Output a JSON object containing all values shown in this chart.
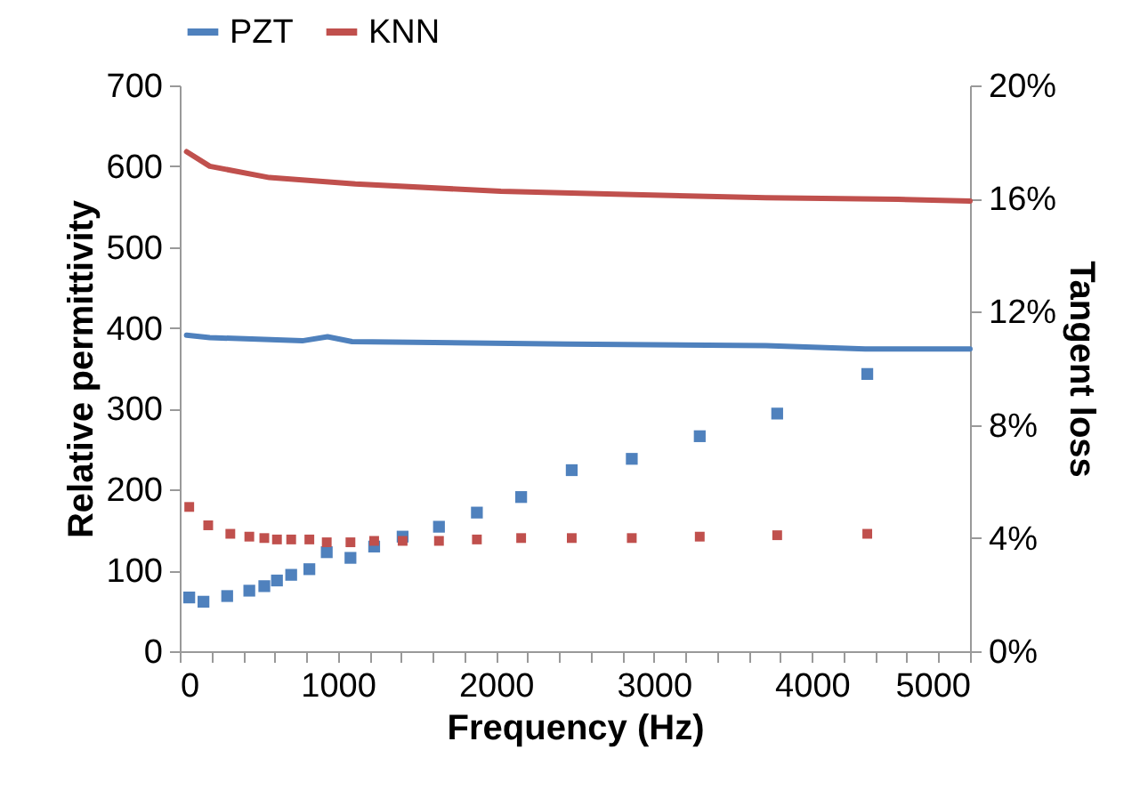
{
  "chart_data": {
    "type": "line",
    "xlabel": "Frequency (Hz)",
    "ylabel": "Relative permittivity",
    "y2label": "Tangent loss",
    "xlim": [
      0,
      5000
    ],
    "xticks": [
      0,
      {
        "value": 200,
        "label": null
      },
      {
        "value": 400,
        "label": null
      },
      {
        "value": 600,
        "label": null
      },
      {
        "value": 800,
        "label": null
      },
      1000,
      {
        "value": 1200,
        "label": null
      },
      {
        "value": 1400,
        "label": null
      },
      {
        "value": 1600,
        "label": null
      },
      {
        "value": 1800,
        "label": null
      },
      2000,
      {
        "value": 2200,
        "label": null
      },
      {
        "value": 2400,
        "label": null
      },
      {
        "value": 2600,
        "label": null
      },
      {
        "value": 2800,
        "label": null
      },
      3000,
      {
        "value": 3200,
        "label": null
      },
      {
        "value": 3400,
        "label": null
      },
      {
        "value": 3600,
        "label": null
      },
      {
        "value": 3800,
        "label": null
      },
      4000,
      {
        "value": 4200,
        "label": null
      },
      {
        "value": 4400,
        "label": null
      },
      {
        "value": 4600,
        "label": null
      },
      {
        "value": 4800,
        "label": null
      },
      5000
    ],
    "ylim": [
      0,
      700
    ],
    "yticks": [
      0,
      100,
      200,
      300,
      400,
      500,
      600,
      700
    ],
    "y2lim": [
      0,
      20
    ],
    "y2ticks": [
      {
        "value": 0,
        "label": "0%"
      },
      {
        "value": 4,
        "label": "4%"
      },
      {
        "value": 8,
        "label": "8%"
      },
      {
        "value": 12,
        "label": "12%"
      },
      {
        "value": 16,
        "label": "16%"
      },
      {
        "value": 20,
        "label": "20%"
      }
    ],
    "grid": false,
    "legend": "top",
    "series": [
      {
        "name": "PZT",
        "color": "#4f81bd",
        "marker": "none",
        "x": [
          43,
          190,
          775,
          935,
          1090,
          2450,
          3708,
          4337,
          5000
        ],
        "values": [
          391,
          388,
          384,
          389,
          383,
          380,
          378,
          374,
          374
        ]
      },
      {
        "name": "KNN",
        "color": "#c0504d",
        "marker": "none",
        "x": [
          43,
          190,
          567,
          1111,
          2032,
          2870,
          3708,
          4545,
          5000
        ],
        "values": [
          618,
          600,
          586,
          578,
          569,
          565,
          561,
          559,
          557
        ]
      },
      {
        "color": "#4f81bd",
        "type": "scatter",
        "axis": "y2",
        "marker": "square",
        "x": [
          60,
          150,
          300,
          440,
          535,
          615,
          705,
          820,
          930,
          1080,
          1230,
          1410,
          1640,
          1880,
          2160,
          2480,
          2860,
          3290,
          3780,
          4350
        ],
        "values": [
          1.9,
          1.75,
          1.95,
          2.14,
          2.3,
          2.5,
          2.7,
          2.9,
          3.5,
          3.3,
          3.7,
          4.05,
          4.4,
          4.9,
          5.45,
          6.4,
          6.8,
          7.6,
          8.4,
          9.8
        ]
      },
      {
        "color": "#c0504d",
        "type": "scatter",
        "axis": "y2",
        "marker": "square",
        "x": [
          60,
          180,
          320,
          440,
          535,
          615,
          705,
          820,
          930,
          1080,
          1230,
          1410,
          1640,
          1880,
          2160,
          2480,
          2860,
          3290,
          3780,
          4350
        ],
        "values": [
          5.1,
          4.45,
          4.15,
          4.05,
          4.0,
          3.95,
          3.95,
          3.95,
          3.85,
          3.85,
          3.9,
          3.9,
          3.9,
          3.95,
          4.0,
          4.0,
          4.0,
          4.05,
          4.1,
          4.15
        ]
      }
    ]
  }
}
